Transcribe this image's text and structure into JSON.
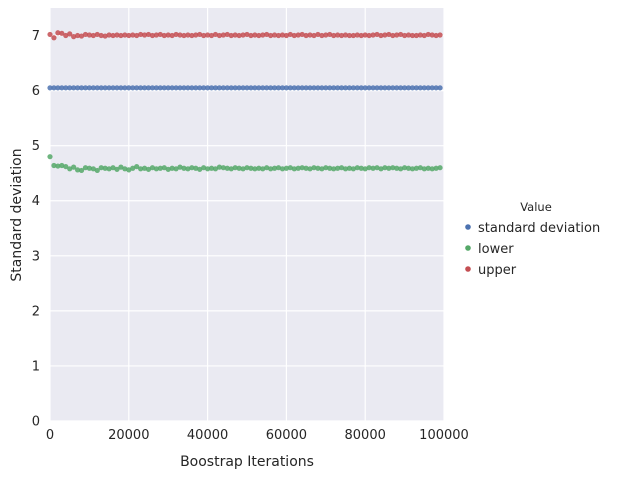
{
  "chart_data": {
    "type": "scatter",
    "xlabel": "Boostrap Iterations",
    "ylabel": "Standard deviation",
    "xlim": [
      0,
      100000
    ],
    "ylim": [
      0,
      7.5
    ],
    "x_ticks": [
      0,
      20000,
      40000,
      60000,
      80000,
      100000
    ],
    "y_ticks": [
      0,
      1,
      2,
      3,
      4,
      5,
      6,
      7
    ],
    "grid": true,
    "legend_title": "Value",
    "legend_position": "right",
    "series": [
      {
        "name": "standard deviation",
        "color": "#4c72b0",
        "x_start": 0,
        "x_step": 1000,
        "values": [
          6.05,
          6.05,
          6.05,
          6.05,
          6.05,
          6.05,
          6.05,
          6.05,
          6.05,
          6.05,
          6.05,
          6.05,
          6.05,
          6.05,
          6.05,
          6.05,
          6.05,
          6.05,
          6.05,
          6.05,
          6.05,
          6.05,
          6.05,
          6.05,
          6.05,
          6.05,
          6.05,
          6.05,
          6.05,
          6.05,
          6.05,
          6.05,
          6.05,
          6.05,
          6.05,
          6.05,
          6.05,
          6.05,
          6.05,
          6.05,
          6.05,
          6.05,
          6.05,
          6.05,
          6.05,
          6.05,
          6.05,
          6.05,
          6.05,
          6.05,
          6.05,
          6.05,
          6.05,
          6.05,
          6.05,
          6.05,
          6.05,
          6.05,
          6.05,
          6.05,
          6.05,
          6.05,
          6.05,
          6.05,
          6.05,
          6.05,
          6.05,
          6.05,
          6.05,
          6.05,
          6.05,
          6.05,
          6.05,
          6.05,
          6.05,
          6.05,
          6.05,
          6.05,
          6.05,
          6.05,
          6.05,
          6.05,
          6.05,
          6.05,
          6.05,
          6.05,
          6.05,
          6.05,
          6.05,
          6.05,
          6.05,
          6.05,
          6.05,
          6.05,
          6.05,
          6.05,
          6.05,
          6.05,
          6.05,
          6.05
        ]
      },
      {
        "name": "lower",
        "color": "#55a868",
        "x_start": 0,
        "x_step": 1000,
        "values": [
          4.8,
          4.64,
          4.63,
          4.64,
          4.62,
          4.58,
          4.61,
          4.56,
          4.55,
          4.6,
          4.59,
          4.58,
          4.55,
          4.6,
          4.59,
          4.58,
          4.6,
          4.57,
          4.61,
          4.58,
          4.56,
          4.59,
          4.62,
          4.58,
          4.59,
          4.57,
          4.6,
          4.58,
          4.59,
          4.6,
          4.57,
          4.59,
          4.58,
          4.61,
          4.59,
          4.58,
          4.6,
          4.59,
          4.57,
          4.6,
          4.58,
          4.59,
          4.58,
          4.61,
          4.6,
          4.59,
          4.58,
          4.6,
          4.59,
          4.58,
          4.6,
          4.59,
          4.58,
          4.59,
          4.58,
          4.6,
          4.58,
          4.59,
          4.6,
          4.58,
          4.59,
          4.6,
          4.58,
          4.59,
          4.6,
          4.59,
          4.58,
          4.6,
          4.59,
          4.58,
          4.6,
          4.59,
          4.58,
          4.59,
          4.6,
          4.58,
          4.59,
          4.58,
          4.6,
          4.59,
          4.58,
          4.6,
          4.59,
          4.6,
          4.58,
          4.6,
          4.59,
          4.6,
          4.59,
          4.58,
          4.6,
          4.59,
          4.58,
          4.59,
          4.6,
          4.58,
          4.59,
          4.58,
          4.59,
          4.6
        ]
      },
      {
        "name": "upper",
        "color": "#c44e52",
        "x_start": 0,
        "x_step": 1000,
        "values": [
          7.02,
          6.96,
          7.05,
          7.04,
          7.0,
          7.03,
          6.98,
          7.0,
          6.99,
          7.02,
          7.01,
          7.0,
          7.02,
          7.0,
          6.99,
          7.01,
          7.0,
          7.01,
          7.0,
          7.01,
          7.0,
          7.01,
          7.0,
          7.02,
          7.01,
          7.02,
          7.0,
          7.01,
          7.02,
          7.0,
          7.01,
          7.0,
          7.02,
          7.01,
          7.0,
          7.01,
          7.0,
          7.01,
          7.02,
          7.0,
          7.01,
          7.0,
          7.02,
          7.0,
          7.01,
          7.02,
          7.0,
          7.01,
          7.0,
          7.01,
          7.02,
          7.0,
          7.01,
          7.0,
          7.01,
          7.02,
          7.0,
          7.01,
          7.0,
          7.01,
          7.0,
          7.02,
          7.0,
          7.01,
          7.02,
          7.0,
          7.01,
          7.0,
          7.02,
          7.0,
          7.01,
          7.02,
          7.0,
          7.01,
          7.0,
          7.01,
          7.0,
          7.0,
          7.01,
          7.0,
          7.01,
          7.0,
          7.01,
          7.02,
          7.0,
          7.01,
          7.02,
          7.0,
          7.01,
          7.02,
          7.0,
          7.01,
          7.0,
          7.0,
          7.01,
          7.0,
          7.02,
          7.01,
          7.0,
          7.01
        ]
      }
    ]
  }
}
